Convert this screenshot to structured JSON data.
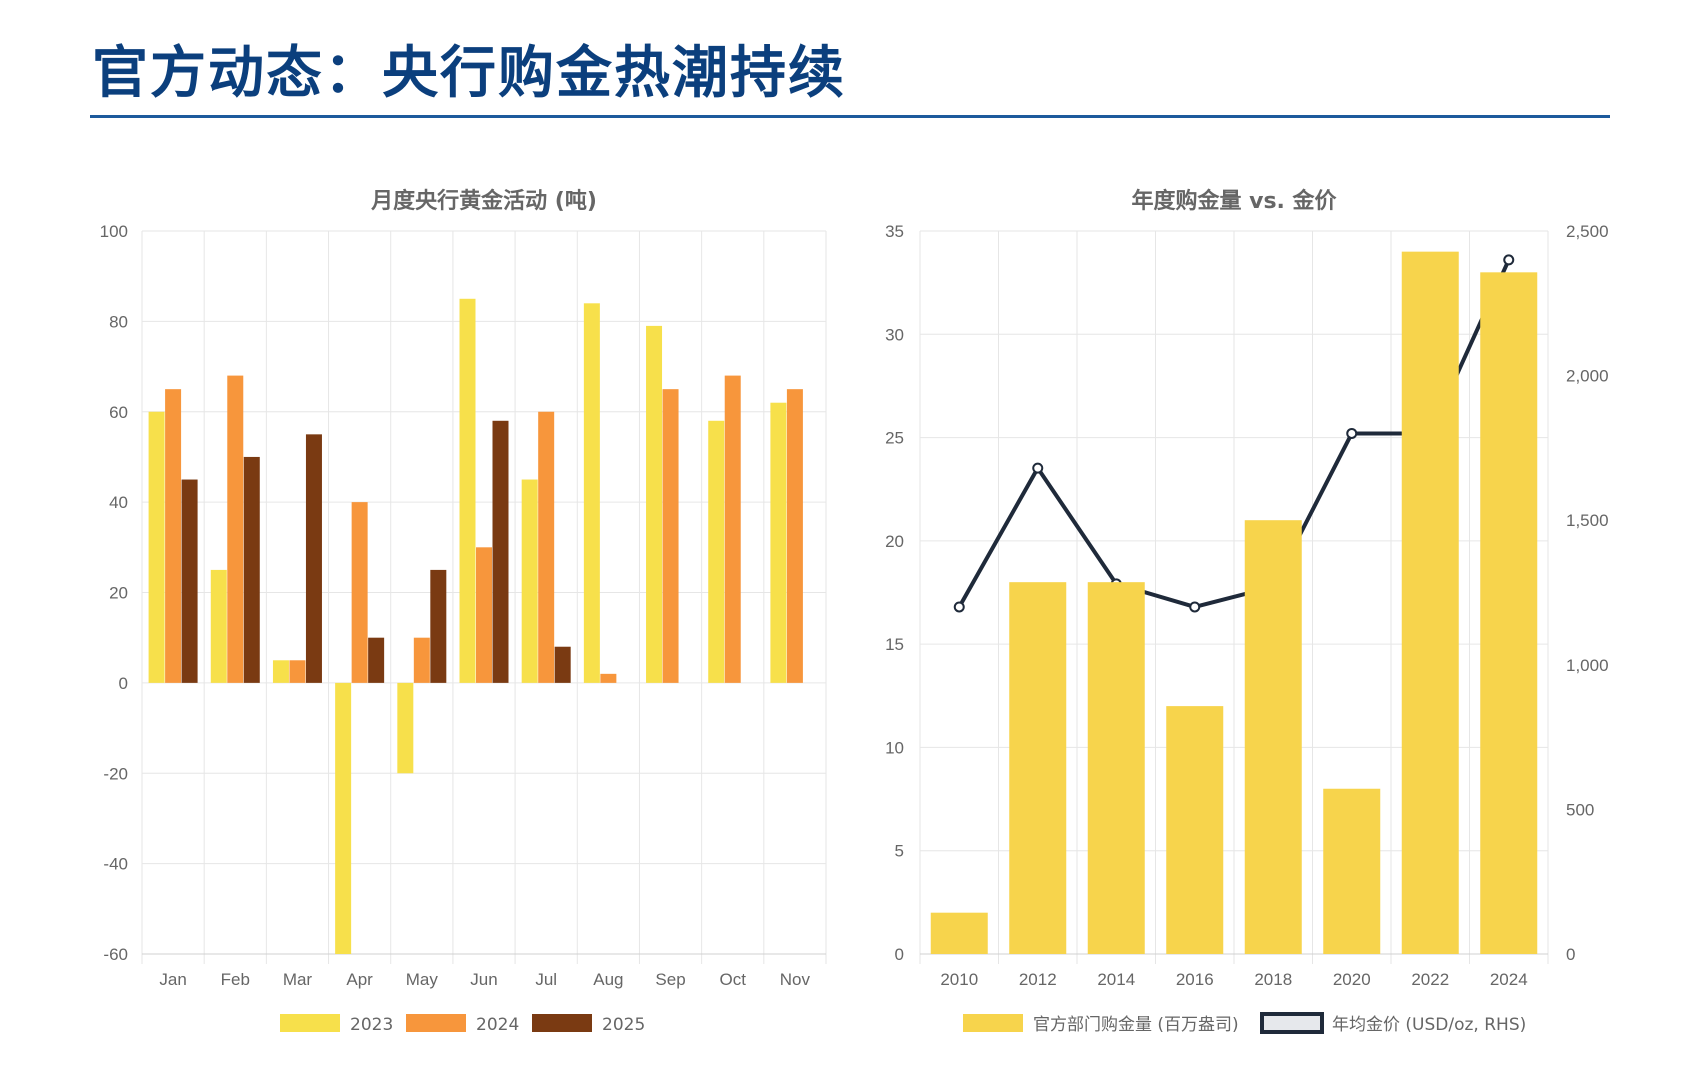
{
  "page": {
    "title": "官方动态：央行购金热潮持续"
  },
  "colors": {
    "title": "#0b3f7d",
    "rule": "#1c5a9c",
    "s2023": "#f7e04b",
    "s2024": "#f7963c",
    "s2025": "#7a3a12",
    "annual_bar": "#f7d44c",
    "price_line": "#1f2a3a",
    "grid": "#e6e6e6"
  },
  "chart_data": [
    {
      "id": "monthly",
      "type": "bar",
      "title": "月度央行黄金活动 (吨)",
      "categories": [
        "Jan",
        "Feb",
        "Mar",
        "Apr",
        "May",
        "Jun",
        "Jul",
        "Aug",
        "Sep",
        "Oct",
        "Nov"
      ],
      "series": [
        {
          "name": "2023",
          "color_key": "s2023",
          "values": [
            60,
            25,
            5,
            -60,
            -20,
            85,
            45,
            84,
            79,
            58,
            62
          ]
        },
        {
          "name": "2024",
          "color_key": "s2024",
          "values": [
            65,
            68,
            5,
            40,
            10,
            30,
            60,
            2,
            65,
            68,
            65
          ]
        },
        {
          "name": "2025",
          "color_key": "s2025",
          "values": [
            45,
            50,
            55,
            10,
            25,
            58,
            8,
            null,
            null,
            null,
            null
          ]
        }
      ],
      "ylim": [
        -60,
        100
      ],
      "yticks": [
        100,
        80,
        60,
        40,
        20,
        0,
        -20,
        -40,
        -60
      ],
      "xlabel": "",
      "ylabel": "",
      "legend": "bottom"
    },
    {
      "id": "annual",
      "type": "bar+line",
      "title": "年度购金量 vs. 金价",
      "categories": [
        "2010",
        "2012",
        "2014",
        "2016",
        "2018",
        "2020",
        "2022",
        "2024"
      ],
      "bar_series": {
        "name": "官方部门购金量 (百万盎司)",
        "values": [
          2,
          18,
          18,
          12,
          21,
          8,
          34,
          33
        ]
      },
      "line_series": {
        "name": "年均金价 (USD/oz, RHS)",
        "values": [
          1200,
          1680,
          1280,
          1200,
          1270,
          1800,
          1800,
          2400
        ]
      },
      "ylim_left": [
        0,
        35
      ],
      "yticks_left": [
        35,
        30,
        25,
        20,
        15,
        10,
        5,
        0
      ],
      "ylim_right": [
        0,
        2500
      ],
      "yticks_right": [
        "2,500",
        "2,000",
        "1,500",
        "1,000",
        "500",
        "0"
      ],
      "legend": "bottom"
    }
  ]
}
